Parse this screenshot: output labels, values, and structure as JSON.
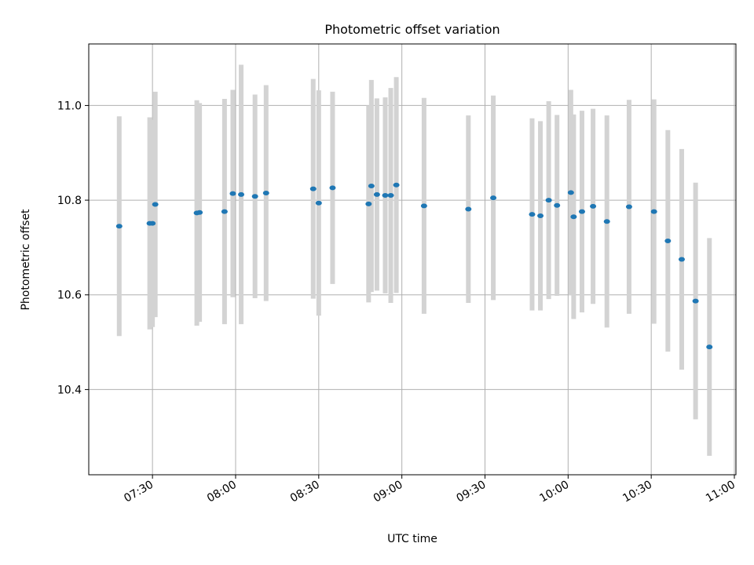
{
  "chart_data": {
    "type": "scatter",
    "title": "Photometric offset variation",
    "xlabel": "UTC time",
    "ylabel": "Photometric offset",
    "x_ticks": [
      "07:30",
      "08:00",
      "08:30",
      "09:00",
      "09:30",
      "10:00",
      "10:30",
      "11:00"
    ],
    "y_ticks": [
      "10.4",
      "10.6",
      "10.8",
      "11.0"
    ],
    "xlim": [
      "07:12",
      "11:00"
    ],
    "ylim": [
      10.22,
      11.13
    ],
    "grid": true,
    "colors": {
      "point": "#1f77b4",
      "errorbar": "#d3d3d3"
    },
    "points": [
      {
        "x": "07:18",
        "y": 10.745,
        "err": 0.232
      },
      {
        "x": "07:29",
        "y": 10.751,
        "err": 0.224
      },
      {
        "x": "07:30",
        "y": 10.751,
        "err": 0.219
      },
      {
        "x": "07:31",
        "y": 10.791,
        "err": 0.238
      },
      {
        "x": "07:46",
        "y": 10.773,
        "err": 0.238
      },
      {
        "x": "07:47",
        "y": 10.774,
        "err": 0.231
      },
      {
        "x": "07:56",
        "y": 10.776,
        "err": 0.238
      },
      {
        "x": "07:59",
        "y": 10.814,
        "err": 0.219
      },
      {
        "x": "08:02",
        "y": 10.812,
        "err": 0.274
      },
      {
        "x": "08:07",
        "y": 10.808,
        "err": 0.215
      },
      {
        "x": "08:11",
        "y": 10.815,
        "err": 0.228
      },
      {
        "x": "08:28",
        "y": 10.824,
        "err": 0.232
      },
      {
        "x": "08:30",
        "y": 10.794,
        "err": 0.238
      },
      {
        "x": "08:35",
        "y": 10.826,
        "err": 0.203
      },
      {
        "x": "08:48",
        "y": 10.792,
        "err": 0.208
      },
      {
        "x": "08:49",
        "y": 10.83,
        "err": 0.224
      },
      {
        "x": "08:51",
        "y": 10.812,
        "err": 0.203
      },
      {
        "x": "08:54",
        "y": 10.81,
        "err": 0.207
      },
      {
        "x": "08:56",
        "y": 10.81,
        "err": 0.227
      },
      {
        "x": "08:58",
        "y": 10.832,
        "err": 0.228
      },
      {
        "x": "09:08",
        "y": 10.788,
        "err": 0.228
      },
      {
        "x": "09:24",
        "y": 10.781,
        "err": 0.198
      },
      {
        "x": "09:33",
        "y": 10.805,
        "err": 0.216
      },
      {
        "x": "09:47",
        "y": 10.77,
        "err": 0.203
      },
      {
        "x": "09:50",
        "y": 10.767,
        "err": 0.2
      },
      {
        "x": "09:53",
        "y": 10.8,
        "err": 0.209
      },
      {
        "x": "09:56",
        "y": 10.789,
        "err": 0.191
      },
      {
        "x": "10:01",
        "y": 10.816,
        "err": 0.217
      },
      {
        "x": "10:02",
        "y": 10.765,
        "err": 0.216
      },
      {
        "x": "10:05",
        "y": 10.776,
        "err": 0.213
      },
      {
        "x": "10:09",
        "y": 10.787,
        "err": 0.206
      },
      {
        "x": "10:14",
        "y": 10.755,
        "err": 0.224
      },
      {
        "x": "10:22",
        "y": 10.786,
        "err": 0.226
      },
      {
        "x": "10:31",
        "y": 10.776,
        "err": 0.237
      },
      {
        "x": "10:36",
        "y": 10.714,
        "err": 0.234
      },
      {
        "x": "10:41",
        "y": 10.675,
        "err": 0.233
      },
      {
        "x": "10:46",
        "y": 10.587,
        "err": 0.25
      },
      {
        "x": "10:51",
        "y": 10.49,
        "err": 0.23
      }
    ]
  }
}
